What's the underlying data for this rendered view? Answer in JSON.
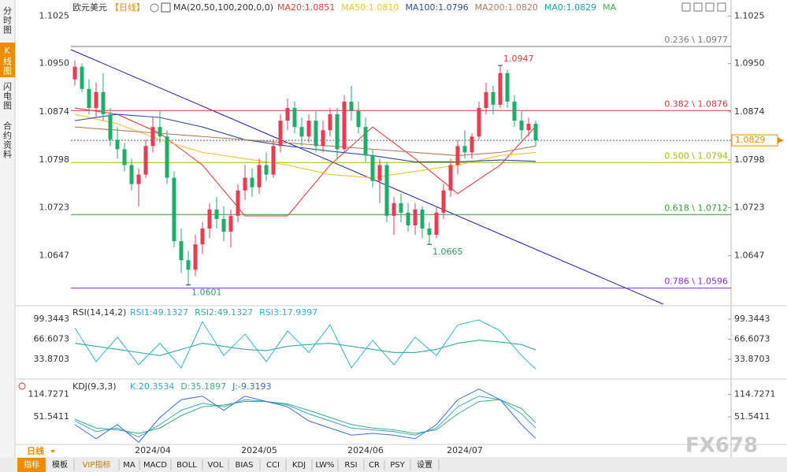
{
  "sidebar": [
    "分时图",
    "K线图",
    "闪电图",
    "合约资料"
  ],
  "header": {
    "symbol": "欧元美元",
    "period": "【日线】",
    "ma_label": "MA(20,50,100,200,0,0)",
    "legend_extra": [
      {
        "name": "MA0:1.0829",
        "color": "#1aa3a3"
      },
      {
        "name": "MA",
        "color": "#39b54a"
      }
    ]
  },
  "chart_data": {
    "type": "candlestick",
    "categories": [
      null,
      null,
      null,
      null,
      null,
      null,
      null,
      null,
      null,
      null,
      null,
      "2024/04",
      null,
      null,
      null,
      null,
      null,
      null,
      null,
      null,
      null,
      null,
      null,
      null,
      null,
      null,
      "2024/05",
      null,
      null,
      null,
      null,
      null,
      null,
      null,
      null,
      null,
      null,
      null,
      null,
      null,
      null,
      "2024/06",
      null,
      null,
      null,
      null,
      null,
      null,
      null,
      null,
      null,
      null,
      null,
      null,
      null,
      "2024/07",
      null,
      null,
      null,
      null,
      null,
      null,
      null,
      null,
      null,
      null
    ],
    "candles": [
      [
        1.0925,
        1.0955,
        1.0915,
        1.0945
      ],
      [
        1.0945,
        1.095,
        1.0905,
        1.091
      ],
      [
        1.091,
        1.0925,
        1.087,
        1.088
      ],
      [
        1.088,
        1.092,
        1.0865,
        1.0905
      ],
      [
        1.0905,
        1.0935,
        1.086,
        1.087
      ],
      [
        1.087,
        1.088,
        1.082,
        1.083
      ],
      [
        1.083,
        1.085,
        1.08,
        1.0815
      ],
      [
        1.0815,
        1.0825,
        1.078,
        1.079
      ],
      [
        1.079,
        1.08,
        1.075,
        1.076
      ],
      [
        1.076,
        1.0785,
        1.0725,
        1.0775
      ],
      [
        1.0775,
        1.083,
        1.077,
        1.082
      ],
      [
        1.082,
        1.0865,
        1.081,
        1.085
      ],
      [
        1.085,
        1.0875,
        1.0825,
        1.0835
      ],
      [
        1.0835,
        1.0845,
        1.076,
        1.077
      ],
      [
        1.077,
        1.078,
        1.066,
        1.067
      ],
      [
        1.067,
        1.069,
        1.062,
        1.064
      ],
      [
        1.064,
        1.0655,
        1.0601,
        1.0625
      ],
      [
        1.0625,
        1.068,
        1.0615,
        1.0665
      ],
      [
        1.0665,
        1.07,
        1.065,
        1.069
      ],
      [
        1.069,
        1.073,
        1.0675,
        1.072
      ],
      [
        1.072,
        1.074,
        1.069,
        1.0705
      ],
      [
        1.0705,
        1.0725,
        1.067,
        1.0685
      ],
      [
        1.0685,
        1.072,
        1.066,
        1.071
      ],
      [
        1.071,
        1.076,
        1.07,
        1.075
      ],
      [
        1.075,
        1.079,
        1.0735,
        1.077
      ],
      [
        1.077,
        1.0785,
        1.074,
        1.0755
      ],
      [
        1.0755,
        1.08,
        1.0745,
        1.079
      ],
      [
        1.079,
        1.081,
        1.0765,
        1.0775
      ],
      [
        1.0775,
        1.083,
        1.077,
        1.082
      ],
      [
        1.082,
        1.087,
        1.081,
        1.086
      ],
      [
        1.086,
        1.0895,
        1.0845,
        1.088
      ],
      [
        1.088,
        1.089,
        1.084,
        1.085
      ],
      [
        1.085,
        1.0865,
        1.082,
        1.0835
      ],
      [
        1.0835,
        1.087,
        1.0825,
        1.086
      ],
      [
        1.086,
        1.0875,
        1.081,
        1.082
      ],
      [
        1.082,
        1.086,
        1.081,
        1.0845
      ],
      [
        1.0845,
        1.088,
        1.0835,
        1.087
      ],
      [
        1.087,
        1.088,
        1.08,
        1.0815
      ],
      [
        1.0815,
        1.09,
        1.081,
        1.089
      ],
      [
        1.089,
        1.0915,
        1.086,
        1.0875
      ],
      [
        1.0875,
        1.089,
        1.084,
        1.085
      ],
      [
        1.085,
        1.0865,
        1.0795,
        1.0805
      ],
      [
        1.0805,
        1.0815,
        1.0755,
        1.0765
      ],
      [
        1.0765,
        1.08,
        1.073,
        1.079
      ],
      [
        1.079,
        1.0795,
        1.07,
        1.071
      ],
      [
        1.071,
        1.074,
        1.068,
        1.073
      ],
      [
        1.073,
        1.0745,
        1.07,
        1.0715
      ],
      [
        1.0715,
        1.073,
        1.0685,
        1.0695
      ],
      [
        1.0695,
        1.073,
        1.068,
        1.072
      ],
      [
        1.072,
        1.0725,
        1.0675,
        1.069
      ],
      [
        1.069,
        1.07,
        1.0665,
        1.068
      ],
      [
        1.068,
        1.0725,
        1.0675,
        1.0715
      ],
      [
        1.0715,
        1.076,
        1.0705,
        1.075
      ],
      [
        1.075,
        1.08,
        1.074,
        1.079
      ],
      [
        1.079,
        1.083,
        1.0775,
        1.082
      ],
      [
        1.082,
        1.0845,
        1.08,
        1.081
      ],
      [
        1.081,
        1.084,
        1.08,
        1.0835
      ],
      [
        1.0835,
        1.089,
        1.083,
        1.088
      ],
      [
        1.088,
        1.092,
        1.087,
        1.0905
      ],
      [
        1.0905,
        1.0915,
        1.087,
        1.0885
      ],
      [
        1.0885,
        1.0947,
        1.088,
        1.0935
      ],
      [
        1.0935,
        1.094,
        1.088,
        1.089
      ],
      [
        1.089,
        1.09,
        1.085,
        1.086
      ],
      [
        1.086,
        1.0875,
        1.083,
        1.0845
      ],
      [
        1.0845,
        1.0865,
        1.0835,
        1.0855
      ],
      [
        1.0855,
        1.086,
        1.082,
        1.0829
      ]
    ],
    "up_color": "#eb3b50",
    "down_color": "#1fae6a",
    "ylim": [
      1.0572,
      1.1044
    ],
    "yticks": [
      1.0647,
      1.0723,
      1.0798,
      1.0874,
      {
        "value": 1.095,
        "label": "1.0950"
      },
      1.1025
    ],
    "ma_x": [
      0,
      6,
      12,
      18,
      24,
      30,
      36,
      42,
      48,
      54,
      60,
      65
    ],
    "ma_series": [
      {
        "name": "MA20:1.0851",
        "color": "#e8413a",
        "values": [
          1.088,
          1.087,
          1.084,
          1.079,
          1.071,
          1.071,
          1.079,
          1.085,
          1.08,
          1.0745,
          1.079,
          1.0851
        ]
      },
      {
        "name": "MA50:1.0810",
        "color": "#f2c12e",
        "values": [
          1.087,
          1.0855,
          1.083,
          1.081,
          1.08,
          1.079,
          1.0775,
          1.077,
          1.078,
          1.079,
          1.0805,
          1.081
        ]
      },
      {
        "name": "MA100:1.0796",
        "color": "#2b4f9e",
        "values": [
          1.086,
          1.087,
          1.0865,
          1.085,
          1.083,
          1.082,
          1.0812,
          1.0805,
          1.0795,
          1.0795,
          1.0798,
          1.0796
        ]
      },
      {
        "name": "MA200:1.0820",
        "color": "#b87a5a",
        "values": [
          1.085,
          1.0845,
          1.084,
          1.0835,
          1.083,
          1.0825,
          1.082,
          1.0815,
          1.081,
          1.0805,
          1.081,
          1.082
        ]
      }
    ],
    "fib_levels": [
      {
        "value": 1.0977,
        "label": "0.236 \\ 1.0977",
        "color": "#7a7a7a"
      },
      {
        "value": 1.0876,
        "label": "0.382 \\ 1.0876",
        "color": "#d63a3a"
      },
      {
        "value": 1.0794,
        "label": "0.500 \\ 1.0794",
        "color": "#a8b800"
      },
      {
        "value": 1.0712,
        "label": "0.618 \\ 1.0712",
        "color": "#2f9e2f"
      },
      {
        "value": 1.0596,
        "label": "0.786 \\ 1.0596",
        "color": "#8a2be2"
      }
    ],
    "last_price": 1.0829,
    "annotations": [
      {
        "value": 1.0947,
        "index": 60,
        "color": "#e03c3c"
      },
      {
        "value": 1.0601,
        "index": 16,
        "color": "#2e9e5e"
      },
      {
        "value": 1.0665,
        "index": 50,
        "color": "#2e9e5e"
      }
    ]
  },
  "rsi": {
    "title": "RSI(14,14,2)",
    "ylim": [
      5.6,
      118.6
    ],
    "yticks": [
      33.8703,
      66.6073,
      99.3443
    ],
    "x": [
      0,
      3,
      6,
      9,
      12,
      15,
      18,
      21,
      24,
      27,
      30,
      33,
      36,
      39,
      42,
      45,
      48,
      51,
      54,
      57,
      60,
      63,
      65
    ],
    "series": [
      {
        "name": "RSI1:49.1327",
        "color": "#3aa7c9",
        "values": [
          60,
          55,
          50,
          45,
          40,
          50,
          60,
          55,
          50,
          48,
          55,
          58,
          60,
          55,
          50,
          45,
          45,
          50,
          60,
          65,
          62,
          58,
          49.1327
        ]
      },
      {
        "name": "RSI2:49.1327",
        "color": "#3ab09a",
        "values": [
          60,
          55,
          50,
          45,
          40,
          50,
          60,
          55,
          50,
          48,
          55,
          58,
          60,
          55,
          50,
          45,
          45,
          50,
          60,
          65,
          62,
          58,
          49.1327
        ]
      },
      {
        "name": "RSI3:17.9397",
        "color": "#2fb3dc",
        "values": [
          85,
          30,
          70,
          25,
          60,
          20,
          95,
          40,
          75,
          30,
          80,
          45,
          90,
          20,
          65,
          25,
          70,
          40,
          90,
          98,
          80,
          40,
          17.9397
        ]
      }
    ]
  },
  "kdj": {
    "title": "KDJ(9,3,3)",
    "ylim": [
      -23.9,
      149.4
    ],
    "yticks": [
      51.5411,
      114.7271
    ],
    "x": [
      0,
      3,
      6,
      9,
      12,
      15,
      18,
      21,
      24,
      27,
      30,
      33,
      36,
      39,
      42,
      45,
      48,
      51,
      54,
      57,
      60,
      63,
      65
    ],
    "series": [
      {
        "name": "K:20.3534",
        "color": "#35a9d6",
        "values": [
          40,
          10,
          20,
          -5,
          30,
          70,
          90,
          80,
          100,
          95,
          85,
          60,
          40,
          20,
          15,
          10,
          0,
          20,
          80,
          110,
          100,
          60,
          20.3534
        ]
      },
      {
        "name": "D:35.1897",
        "color": "#3ab07a",
        "values": [
          45,
          20,
          15,
          5,
          20,
          55,
          80,
          85,
          95,
          95,
          88,
          70,
          50,
          30,
          20,
          15,
          5,
          15,
          60,
          95,
          100,
          75,
          35.1897
        ]
      },
      {
        "name": "J:-9.3193",
        "color": "#3b6fd6",
        "values": [
          30,
          -10,
          30,
          -20,
          50,
          100,
          110,
          70,
          110,
          95,
          80,
          40,
          20,
          0,
          5,
          0,
          -10,
          30,
          100,
          130,
          100,
          30,
          -9.3193
        ]
      }
    ]
  },
  "period_tab": "日线",
  "tabs": [
    "指标",
    "模板",
    "VIP指标",
    "MA",
    "MACD",
    "BOLL",
    "VOL",
    "BIAS",
    "CCI",
    "KDJ",
    "LW%",
    "RSI",
    "CR",
    "PSY",
    "设置"
  ],
  "watermark": "FX678"
}
